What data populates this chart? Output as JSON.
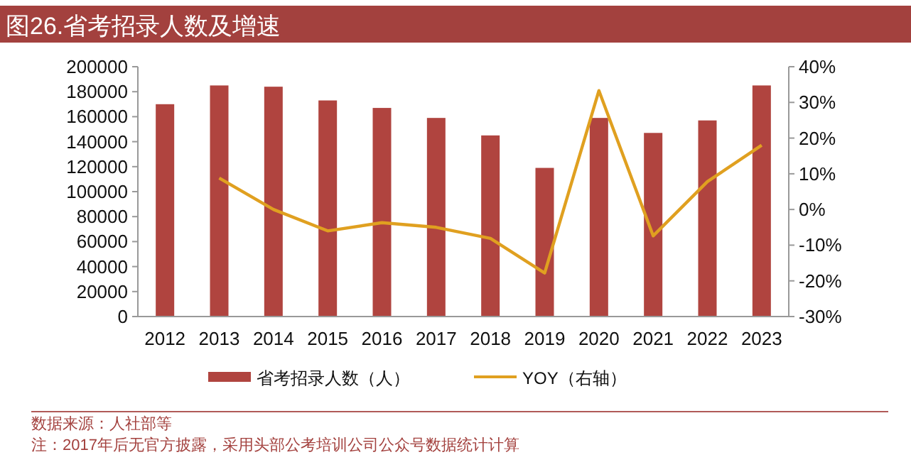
{
  "chart_data": {
    "type": "bar",
    "title": "图26.省考招录人数及增速",
    "categories": [
      "2012",
      "2013",
      "2014",
      "2015",
      "2016",
      "2017",
      "2018",
      "2019",
      "2020",
      "2021",
      "2022",
      "2023"
    ],
    "series": [
      {
        "name": "省考招录人数（人）",
        "color": "#b0443f",
        "values": [
          170000,
          185000,
          184000,
          173000,
          167000,
          159000,
          145000,
          119000,
          159000,
          147000,
          157000,
          185000
        ]
      },
      {
        "name": "YOY（右轴）",
        "type": "line",
        "axis": "y2",
        "color": "#e0a020",
        "values": [
          null,
          8.8,
          0,
          -6.0,
          -3.7,
          -5.0,
          -8.1,
          -17.8,
          33.3,
          -7.4,
          7.8,
          18.0
        ]
      }
    ],
    "ylim": [
      0,
      200000
    ],
    "yticks": [
      0,
      20000,
      40000,
      60000,
      80000,
      100000,
      120000,
      140000,
      160000,
      180000,
      200000
    ],
    "y2lim": [
      -30,
      40
    ],
    "y2ticks": [
      {
        "value": -30,
        "label": "-30%"
      },
      {
        "value": -20,
        "label": "-20%"
      },
      {
        "value": -10,
        "label": "-10%"
      },
      {
        "value": 0,
        "label": "0%"
      },
      {
        "value": 10,
        "label": "10%"
      },
      {
        "value": 20,
        "label": "20%"
      },
      {
        "value": 30,
        "label": "30%"
      },
      {
        "value": 40,
        "label": "40%"
      }
    ],
    "grid": false,
    "legend": "bottom",
    "annotations": [
      "数据来源：人社部等",
      "注：2017年后无官方披露，采用头部公考培训公司公众号数据统计计算"
    ]
  }
}
